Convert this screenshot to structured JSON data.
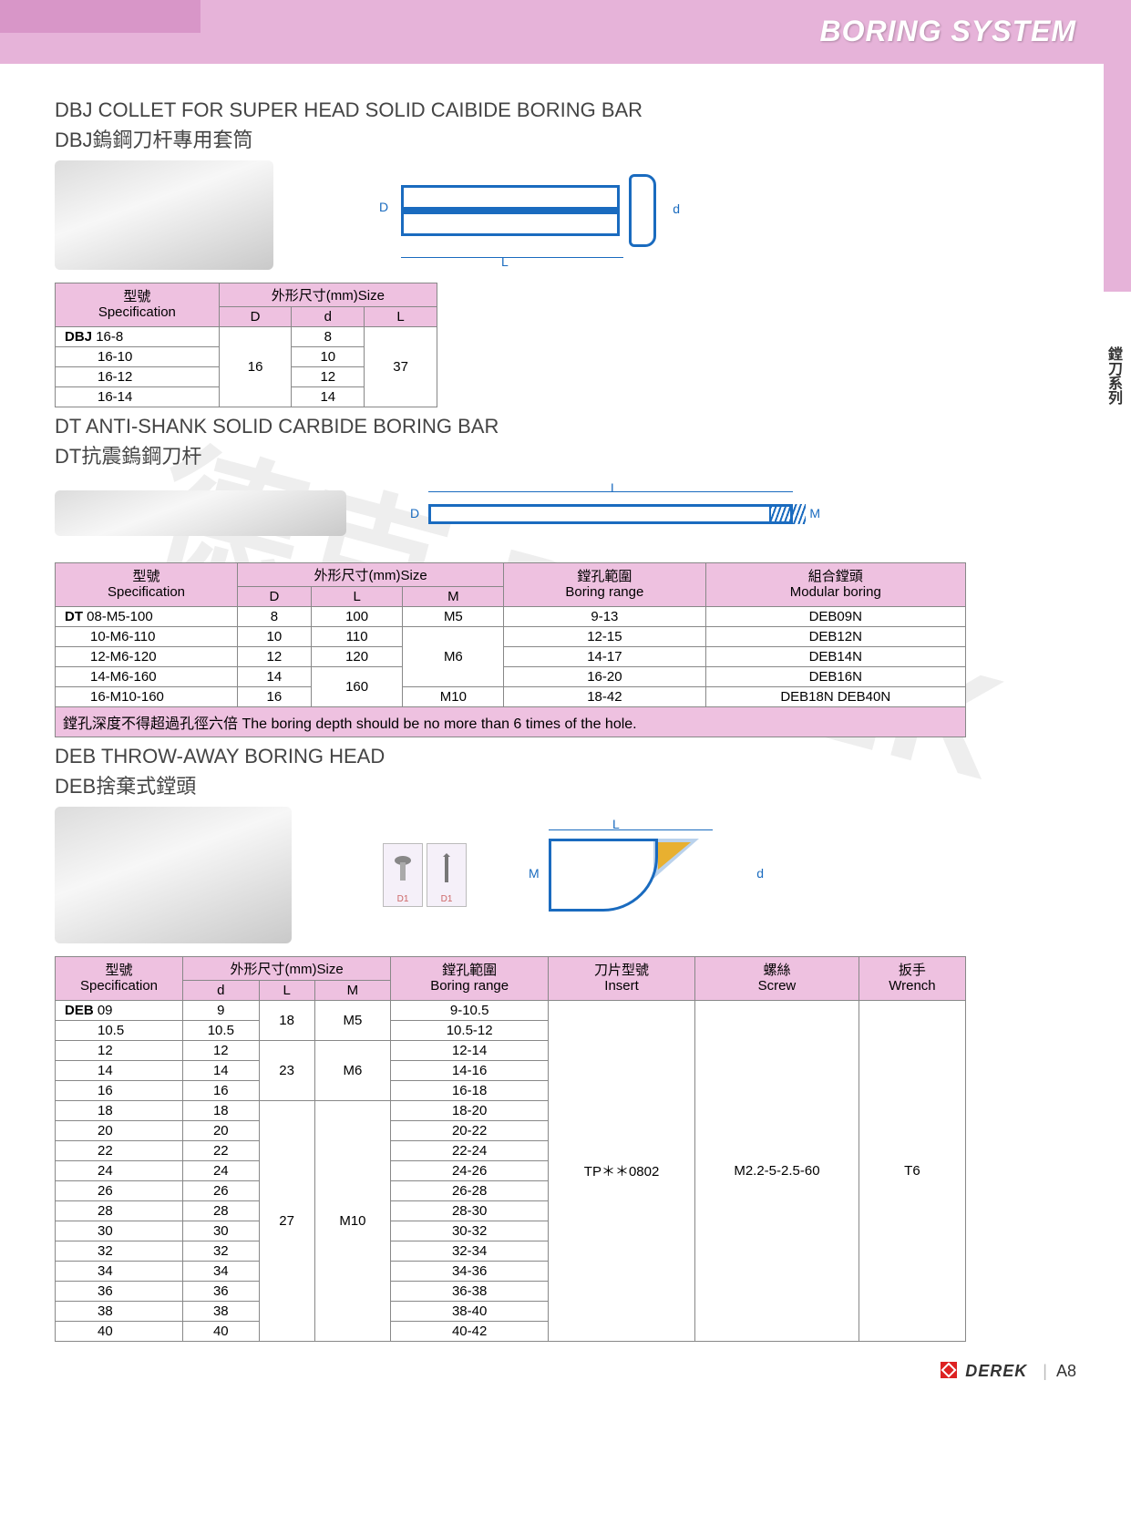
{
  "header": {
    "title": "BORING SYSTEM"
  },
  "side_label": "鏜刀系列",
  "watermark": "德克 DEREK",
  "footer": {
    "brand": "DEREK",
    "page": "A8"
  },
  "colors": {
    "header_pink": "#e6b3d9",
    "header_dark_pink": "#d896c8",
    "table_header_pink": "#eec1e0",
    "diagram_blue": "#1a6bbf",
    "border_gray": "#888888",
    "text_gray": "#444444"
  },
  "section1": {
    "title_en": "DBJ COLLET FOR SUPER HEAD SOLID CAIBIDE BORING BAR",
    "title_cn": "DBJ鎢鋼刀杆專用套筒",
    "diagram_dims": [
      "D",
      "d",
      "L"
    ],
    "table": {
      "header_spec_cn": "型號",
      "header_spec_en": "Specification",
      "header_size": "外形尺寸(mm)Size",
      "columns": [
        "D",
        "d",
        "L"
      ],
      "prefix": "DBJ",
      "rows": [
        {
          "spec": "16-8",
          "D": "16",
          "d": "8",
          "L": "37"
        },
        {
          "spec": "16-10",
          "D": "",
          "d": "10",
          "L": ""
        },
        {
          "spec": "16-12",
          "D": "",
          "d": "12",
          "L": ""
        },
        {
          "spec": "16-14",
          "D": "",
          "d": "14",
          "L": ""
        }
      ],
      "D_merged": "16",
      "L_merged": "37"
    }
  },
  "section2": {
    "title_en": "DT ANTI-SHANK SOLID CARBIDE BORING BAR",
    "title_cn": "DT抗震鎢鋼刀杆",
    "diagram_dims": [
      "D",
      "L",
      "M"
    ],
    "table": {
      "header_spec_cn": "型號",
      "header_spec_en": "Specification",
      "header_size": "外形尺寸(mm)Size",
      "header_range_cn": "鏜孔範圍",
      "header_range_en": "Boring range",
      "header_mod_cn": "組合鏜頭",
      "header_mod_en": "Modular boring",
      "columns": [
        "D",
        "L",
        "M"
      ],
      "prefix": "DT",
      "rows": [
        {
          "spec": "08-M5-100",
          "D": "8",
          "L": "100",
          "M": "M5",
          "range": "9-13",
          "mod": "DEB09N"
        },
        {
          "spec": "10-M6-110",
          "D": "10",
          "L": "110",
          "M": "",
          "range": "12-15",
          "mod": "DEB12N"
        },
        {
          "spec": "12-M6-120",
          "D": "12",
          "L": "120",
          "M": "M6",
          "range": "14-17",
          "mod": "DEB14N"
        },
        {
          "spec": "14-M6-160",
          "D": "14",
          "L": "",
          "M": "",
          "range": "16-20",
          "mod": "DEB16N"
        },
        {
          "spec": "16-M10-160",
          "D": "16",
          "L": "160",
          "M": "M10",
          "range": "18-42",
          "mod": "DEB18N DEB40N"
        }
      ],
      "note": "鏜孔深度不得超過孔徑六倍  The boring depth should be no more than 6 times of the hole."
    }
  },
  "section3": {
    "title_en": "DEB THROW-AWAY BORING HEAD",
    "title_cn": "DEB捨棄式鏜頭",
    "diagram_dims": [
      "M",
      "L",
      "d"
    ],
    "icon_labels": [
      "D1",
      "D1"
    ],
    "table": {
      "header_spec_cn": "型號",
      "header_spec_en": "Specification",
      "header_size": "外形尺寸(mm)Size",
      "header_range_cn": "鏜孔範圍",
      "header_range_en": "Boring range",
      "header_insert_cn": "刀片型號",
      "header_insert_en": "Insert",
      "header_screw_cn": "螺絲",
      "header_screw_en": "Screw",
      "header_wrench_cn": "扳手",
      "header_wrench_en": "Wrench",
      "columns": [
        "d",
        "L",
        "M"
      ],
      "prefix": "DEB",
      "insert_val": "TP＊＊0802",
      "screw_val": "M2.2-5-2.5-60",
      "wrench_val": "T6",
      "rows": [
        {
          "spec": "09",
          "d": "9",
          "L": "18",
          "M": "M5",
          "range": "9-10.5"
        },
        {
          "spec": "10.5",
          "d": "10.5",
          "L": "",
          "M": "",
          "range": "10.5-12"
        },
        {
          "spec": "12",
          "d": "12",
          "L": "23",
          "M": "M6",
          "range": "12-14"
        },
        {
          "spec": "14",
          "d": "14",
          "L": "",
          "M": "",
          "range": "14-16"
        },
        {
          "spec": "16",
          "d": "16",
          "L": "",
          "M": "",
          "range": "16-18"
        },
        {
          "spec": "18",
          "d": "18",
          "L": "27",
          "M": "M10",
          "range": "18-20"
        },
        {
          "spec": "20",
          "d": "20",
          "L": "",
          "M": "",
          "range": "20-22"
        },
        {
          "spec": "22",
          "d": "22",
          "L": "",
          "M": "",
          "range": "22-24"
        },
        {
          "spec": "24",
          "d": "24",
          "L": "",
          "M": "",
          "range": "24-26"
        },
        {
          "spec": "26",
          "d": "26",
          "L": "",
          "M": "",
          "range": "26-28"
        },
        {
          "spec": "28",
          "d": "28",
          "L": "",
          "M": "",
          "range": "28-30"
        },
        {
          "spec": "30",
          "d": "30",
          "L": "",
          "M": "",
          "range": "30-32"
        },
        {
          "spec": "32",
          "d": "32",
          "L": "",
          "M": "",
          "range": "32-34"
        },
        {
          "spec": "34",
          "d": "34",
          "L": "",
          "M": "",
          "range": "34-36"
        },
        {
          "spec": "36",
          "d": "36",
          "L": "",
          "M": "",
          "range": "36-38"
        },
        {
          "spec": "38",
          "d": "38",
          "L": "",
          "M": "",
          "range": "38-40"
        },
        {
          "spec": "40",
          "d": "40",
          "L": "",
          "M": "",
          "range": "40-42"
        }
      ]
    }
  }
}
